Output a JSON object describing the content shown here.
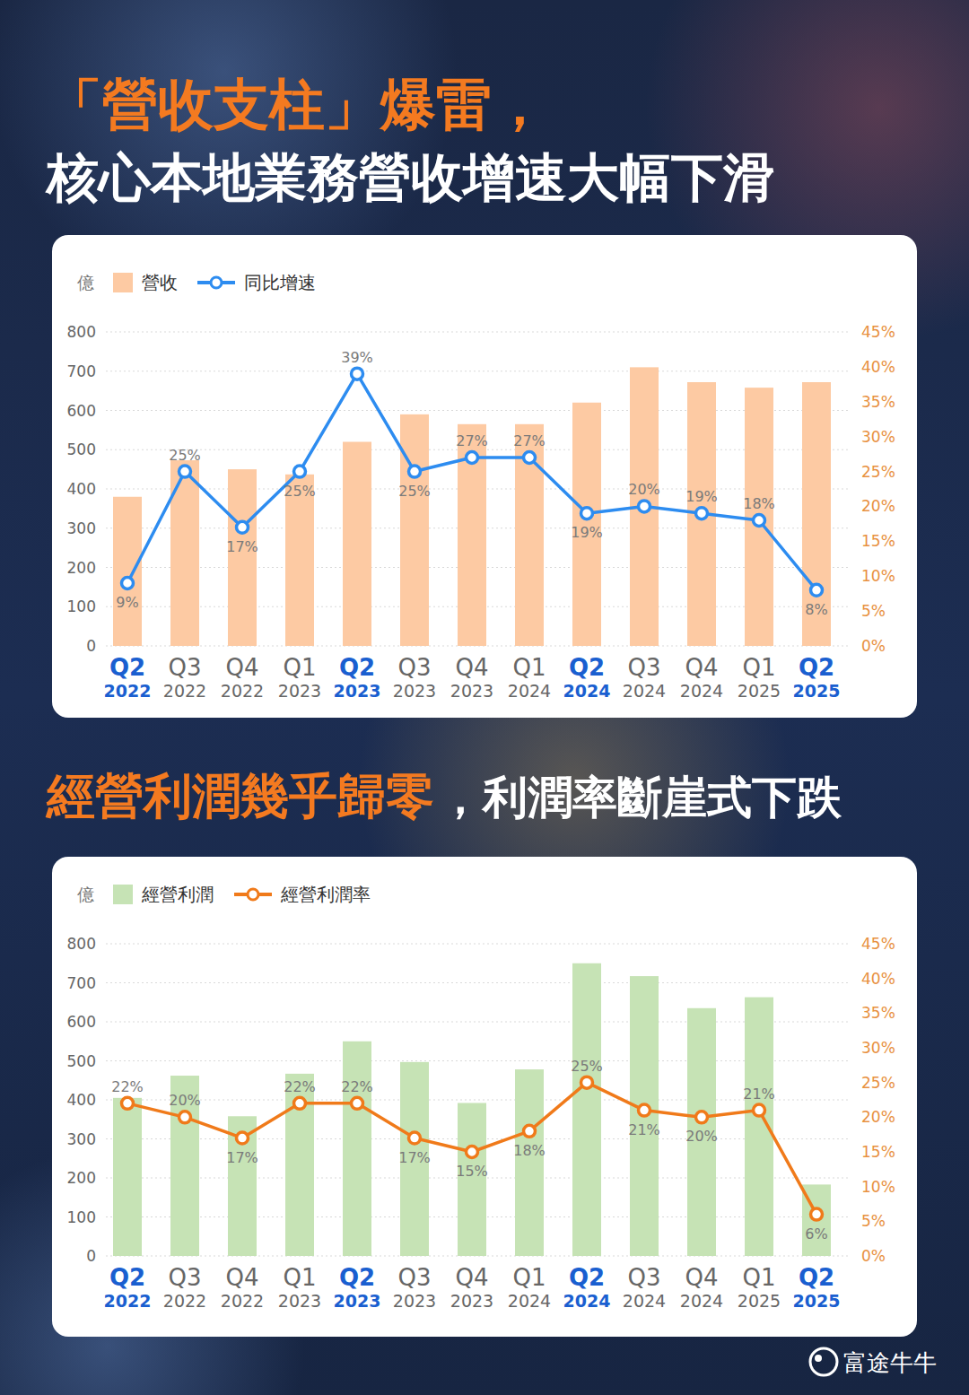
{
  "chart_data": [
    {
      "type": "bar",
      "title": "「營收支柱」爆雷，",
      "subtitle": "核心本地業務營收增速大幅下滑",
      "ylabel": "億",
      "categories": [
        "Q2 2022",
        "Q3 2022",
        "Q4 2022",
        "Q1 2023",
        "Q2 2023",
        "Q3 2023",
        "Q4 2023",
        "Q1 2024",
        "Q2 2024",
        "Q3 2024",
        "Q4 2024",
        "Q1 2025",
        "Q2 2025"
      ],
      "series": [
        {
          "name": "營收",
          "type": "bar",
          "color": "#fdcaa3",
          "values": [
            380,
            473,
            450,
            437,
            520,
            590,
            565,
            565,
            620,
            710,
            672,
            658,
            672
          ]
        },
        {
          "name": "同比增速",
          "type": "line",
          "axis": "y2",
          "color": "#2d8cf0",
          "marker": "circle",
          "data_labels": true,
          "values": [
            9,
            25,
            17,
            25,
            39,
            25,
            27,
            27,
            19,
            20,
            19,
            18,
            8
          ],
          "value_labels": [
            "9%",
            "25%",
            "17%",
            "25%",
            "39%",
            "25%",
            "27%",
            "27%",
            "19%",
            "20%",
            "19%",
            "18%",
            "8%"
          ]
        }
      ],
      "ylim": [
        0,
        800
      ],
      "yticks": [
        0,
        100,
        200,
        300,
        400,
        500,
        600,
        700,
        800
      ],
      "y2lim": [
        0,
        45
      ],
      "y2ticks": [
        {
          "value": 0,
          "label": "0%"
        },
        {
          "value": 5,
          "label": "5%"
        },
        {
          "value": 10,
          "label": "10%"
        },
        {
          "value": 15,
          "label": "15%"
        },
        {
          "value": 20,
          "label": "20%"
        },
        {
          "value": 25,
          "label": "25%"
        },
        {
          "value": 30,
          "label": "30%"
        },
        {
          "value": 35,
          "label": "35%"
        },
        {
          "value": 40,
          "label": "40%"
        },
        {
          "value": 45,
          "label": "45%"
        }
      ],
      "grid": true,
      "legend": "top-left"
    },
    {
      "type": "bar",
      "title": "經營利潤幾乎歸零",
      "subtitle": "，利潤率斷崖式下跌",
      "ylabel": "億",
      "categories": [
        "Q2 2022",
        "Q3 2022",
        "Q4 2022",
        "Q1 2023",
        "Q2 2023",
        "Q3 2023",
        "Q4 2023",
        "Q1 2024",
        "Q2 2024",
        "Q3 2024",
        "Q4 2024",
        "Q1 2025",
        "Q2 2025"
      ],
      "series": [
        {
          "name": "經營利潤",
          "type": "bar",
          "color": "#c6e3b5",
          "values": [
            405,
            462,
            358,
            467,
            550,
            497,
            392,
            478,
            750,
            717,
            635,
            663,
            183
          ]
        },
        {
          "name": "經營利潤率",
          "type": "line",
          "axis": "y2",
          "color": "#f07a1a",
          "marker": "circle",
          "data_labels": true,
          "values": [
            22,
            20,
            17,
            22,
            22,
            17,
            15,
            18,
            25,
            21,
            20,
            21,
            6
          ],
          "value_labels": [
            "22%",
            "20%",
            "17%",
            "22%",
            "22%",
            "17%",
            "15%",
            "18%",
            "25%",
            "21%",
            "20%",
            "21%",
            "6%"
          ]
        }
      ],
      "ylim": [
        0,
        800
      ],
      "yticks": [
        0,
        100,
        200,
        300,
        400,
        500,
        600,
        700,
        800
      ],
      "y2lim": [
        0,
        45
      ],
      "y2ticks": [
        {
          "value": 0,
          "label": "0%"
        },
        {
          "value": 5,
          "label": "5%"
        },
        {
          "value": 10,
          "label": "10%"
        },
        {
          "value": 15,
          "label": "15%"
        },
        {
          "value": 20,
          "label": "20%"
        },
        {
          "value": 25,
          "label": "25%"
        },
        {
          "value": 30,
          "label": "30%"
        },
        {
          "value": 35,
          "label": "35%"
        },
        {
          "value": 40,
          "label": "40%"
        },
        {
          "value": 45,
          "label": "45%"
        }
      ],
      "grid": true,
      "legend": "top-left"
    }
  ],
  "footer": {
    "watermark": "富途牛牛"
  }
}
